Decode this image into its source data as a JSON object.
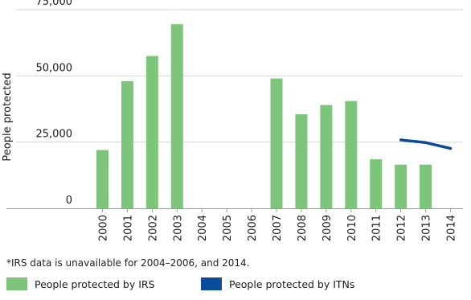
{
  "chart_data": {
    "type": "bar",
    "categories": [
      "2000",
      "2001",
      "2002",
      "2003",
      "2004",
      "2005",
      "2006",
      "2007",
      "2008",
      "2009",
      "2010",
      "2011",
      "2012",
      "2013",
      "2014"
    ],
    "series": [
      {
        "name": "People protected by IRS",
        "type": "bar",
        "color": "#7dc57a",
        "values": [
          22000,
          48000,
          57500,
          69500,
          null,
          null,
          null,
          49000,
          35500,
          39000,
          40500,
          18500,
          16500,
          16500,
          null
        ]
      },
      {
        "name": "People protected by ITNs",
        "type": "line",
        "color": "#0a4b9c",
        "values": [
          null,
          null,
          null,
          null,
          null,
          null,
          null,
          null,
          null,
          null,
          null,
          null,
          25800,
          24800,
          22600
        ]
      }
    ],
    "ylabel": "People protected",
    "ylim": [
      0,
      75000
    ],
    "yticks": [
      0,
      25000,
      50000,
      75000
    ],
    "ytick_labels": [
      "0",
      "25,000",
      "50,000",
      "75,000"
    ],
    "grid": true,
    "legend_placement": "bottom"
  },
  "footnote": "*IRS data is unavailable for 2004–2006, and 2014.",
  "legend": [
    {
      "label": "People protected by IRS",
      "color": "#7dc57a"
    },
    {
      "label": "People protected by ITNs",
      "color": "#0a4b9c"
    }
  ]
}
